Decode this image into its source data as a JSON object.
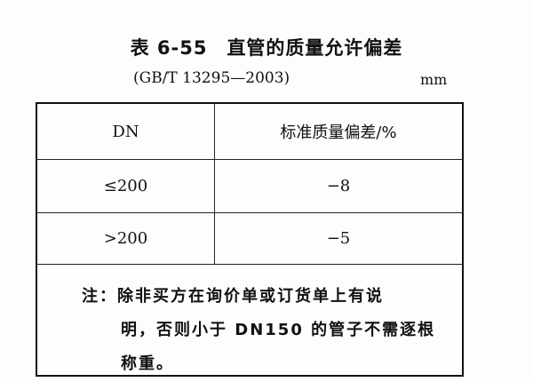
{
  "title": {
    "number": "表 6-55",
    "text": "直管的质量允许偏差"
  },
  "standard": "(GB/T 13295—2003)",
  "unit": "mm",
  "table": {
    "headers": [
      "DN",
      "标准质量偏差/%"
    ],
    "rows": [
      [
        "≤200",
        "−8"
      ],
      [
        ">200",
        "−5"
      ]
    ]
  },
  "note": {
    "line1": "注：除非买方在询价单或订货单上有说",
    "line2": "明，否则小于 DN150 的管子不需逐根",
    "line3": "称重。"
  }
}
